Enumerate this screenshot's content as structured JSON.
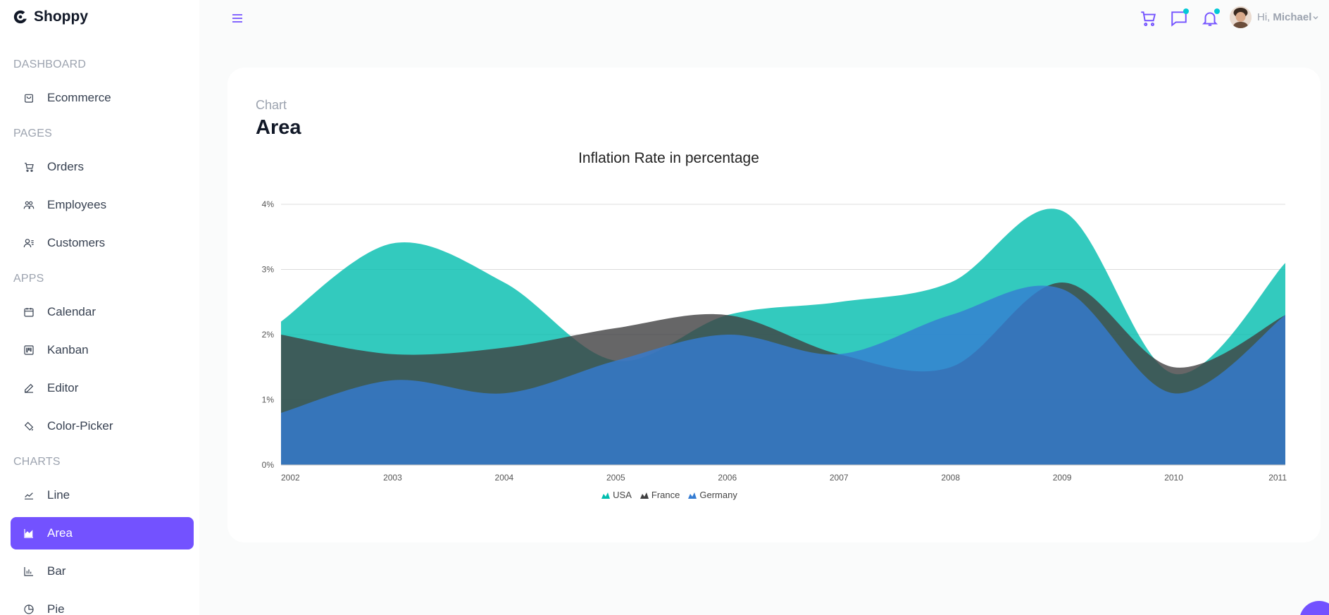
{
  "brand": {
    "name": "Shoppy"
  },
  "sidebar": {
    "sections": [
      {
        "title": "DASHBOARD",
        "items": [
          {
            "label": "Ecommerce",
            "icon": "bag-icon"
          }
        ]
      },
      {
        "title": "PAGES",
        "items": [
          {
            "label": "Orders",
            "icon": "cart-icon"
          },
          {
            "label": "Employees",
            "icon": "people-icon"
          },
          {
            "label": "Customers",
            "icon": "customers-icon"
          }
        ]
      },
      {
        "title": "APPS",
        "items": [
          {
            "label": "Calendar",
            "icon": "calendar-icon"
          },
          {
            "label": "Kanban",
            "icon": "kanban-icon"
          },
          {
            "label": "Editor",
            "icon": "edit-icon"
          },
          {
            "label": "Color-Picker",
            "icon": "color-picker-icon"
          }
        ]
      },
      {
        "title": "CHARTS",
        "items": [
          {
            "label": "Line",
            "icon": "line-chart-icon"
          },
          {
            "label": "Area",
            "icon": "area-chart-icon"
          },
          {
            "label": "Bar",
            "icon": "bar-chart-icon"
          },
          {
            "label": "Pie",
            "icon": "pie-chart-icon"
          }
        ]
      }
    ]
  },
  "header": {
    "greeting": "Hi,",
    "user_name": "Michael",
    "icons": [
      "menu-icon",
      "cart-icon",
      "chat-icon",
      "bell-icon",
      "chevron-down-icon"
    ]
  },
  "page": {
    "category": "Chart",
    "title": "Area"
  },
  "colors": {
    "accent": "#7352ff",
    "usa": "#00bdae",
    "france": "#404041",
    "germany": "#357cd2",
    "dot": "#03c9d7"
  },
  "chart_data": {
    "type": "area",
    "title": "Inflation Rate in percentage",
    "x": [
      "2002",
      "2003",
      "2004",
      "2005",
      "2006",
      "2007",
      "2008",
      "2009",
      "2010",
      "2011"
    ],
    "ylim": [
      0,
      4
    ],
    "yticks": [
      "0%",
      "1%",
      "2%",
      "3%",
      "4%"
    ],
    "grid": true,
    "legend_position": "bottom",
    "series": [
      {
        "name": "USA",
        "values": [
          2.2,
          3.4,
          2.8,
          1.6,
          2.3,
          2.5,
          2.8,
          3.9,
          1.4,
          3.1
        ]
      },
      {
        "name": "France",
        "values": [
          2.0,
          1.7,
          1.8,
          2.1,
          2.3,
          1.7,
          1.5,
          2.8,
          1.5,
          2.3
        ]
      },
      {
        "name": "Germany",
        "values": [
          0.8,
          1.3,
          1.1,
          1.6,
          2.0,
          1.7,
          2.3,
          2.7,
          1.1,
          2.3
        ]
      }
    ]
  }
}
